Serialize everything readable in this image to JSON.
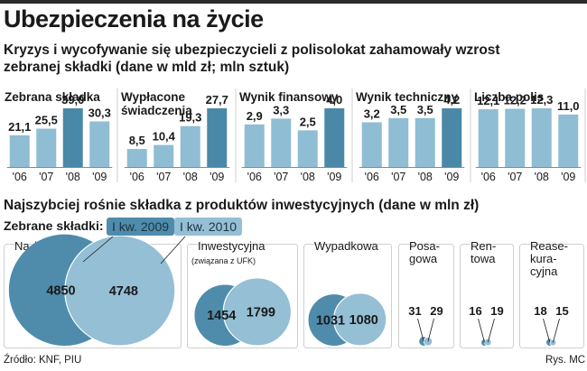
{
  "header": {
    "title": "Ubezpieczenia na życie",
    "subtitle": "Kryzys i wycofywanie się ubezpieczycieli z polisolokat zahamowały wzrost zebranej składki (dane w mld zł; mln sztuk)"
  },
  "section2": {
    "title": "Najszybciej rośnie składka z produktów inwestycyjnych (dane w mln zł)",
    "legend_label": "Zebrane składki:",
    "legend_items": [
      {
        "label": "I kw. 2009",
        "color": "#4f8cac"
      },
      {
        "label": "I kw. 2010",
        "color": "#94bfd5"
      }
    ]
  },
  "footer": {
    "source": "Źródło: KNF, PIU",
    "credit": "Rys. MC"
  },
  "colors": {
    "bar_light": "#8fbdd3",
    "bar_dark": "#4a88a8",
    "circle_2009": "#4f8cac",
    "circle_2010": "#94bfd5",
    "panel_border": "#cfcfcf"
  },
  "chart_data": [
    {
      "type": "bar",
      "title_lines": [
        "Zebrana składka"
      ],
      "categories": [
        "'06",
        "'07",
        "'08",
        "'09"
      ],
      "values": [
        21.1,
        25.5,
        39.0,
        30.3
      ],
      "labels": [
        "21,1",
        "25,5",
        "39,0",
        "30,3"
      ],
      "highlight_index": 2
    },
    {
      "type": "bar",
      "title_lines": [
        "Wypłacone",
        "świadczenia"
      ],
      "categories": [
        "'06",
        "'07",
        "'08",
        "'09"
      ],
      "values": [
        8.5,
        10.4,
        19.3,
        27.7
      ],
      "labels": [
        "8,5",
        "10,4",
        "19,3",
        "27,7"
      ],
      "highlight_index": 3
    },
    {
      "type": "bar",
      "title_lines": [
        "Wynik finansowy"
      ],
      "categories": [
        "'06",
        "'07",
        "'08",
        "'09"
      ],
      "values": [
        2.9,
        3.3,
        2.5,
        4.0
      ],
      "labels": [
        "2,9",
        "3,3",
        "2,5",
        "4,0"
      ],
      "highlight_index": 3
    },
    {
      "type": "bar",
      "title_lines": [
        "Wynik techniczny"
      ],
      "categories": [
        "'06",
        "'07",
        "'08",
        "'09"
      ],
      "values": [
        3.2,
        3.5,
        3.5,
        4.2
      ],
      "labels": [
        "3,2",
        "3,5",
        "3,5",
        "4,2"
      ],
      "highlight_index": 3
    },
    {
      "type": "bar",
      "title_lines": [
        "Liczba polis"
      ],
      "categories": [
        "'06",
        "'07",
        "'08",
        "'09"
      ],
      "values": [
        12.1,
        12.2,
        12.3,
        11.0
      ],
      "labels": [
        "12,1",
        "12,2",
        "12,3",
        "11,0"
      ],
      "highlight_index": -1
    },
    {
      "type": "bubble",
      "series": [
        "I kw. 2009",
        "I kw. 2010"
      ],
      "groups": [
        {
          "title_lines": [
            "Na życie"
          ],
          "subtitle": "",
          "values": [
            4850,
            4748
          ]
        },
        {
          "title_lines": [
            "Inwestycyjna"
          ],
          "subtitle": "(związana z UFK)",
          "values": [
            1454,
            1799
          ]
        },
        {
          "title_lines": [
            "Wypadkowa"
          ],
          "subtitle": "",
          "values": [
            1031,
            1080
          ]
        },
        {
          "title_lines": [
            "Posa-",
            "gowa"
          ],
          "subtitle": "",
          "values": [
            31,
            29
          ]
        },
        {
          "title_lines": [
            "Ren-",
            "towa"
          ],
          "subtitle": "",
          "values": [
            16,
            19
          ]
        },
        {
          "title_lines": [
            "Rease-",
            "kura-",
            "cyjna"
          ],
          "subtitle": "",
          "values": [
            18,
            15
          ]
        }
      ]
    }
  ]
}
